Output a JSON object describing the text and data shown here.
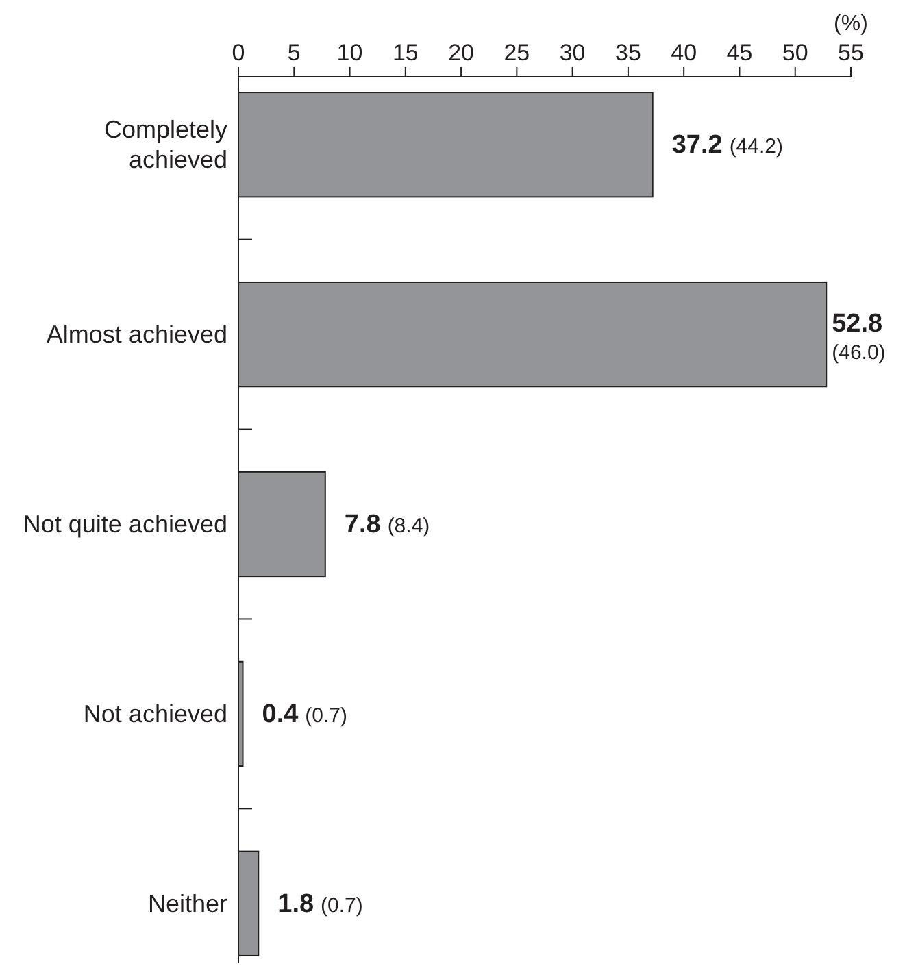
{
  "chart_data": {
    "type": "bar",
    "orientation": "horizontal",
    "xlabel": "(%)",
    "categories": [
      "Completely\nachieved",
      "Almost achieved",
      "Not quite achieved",
      "Not achieved",
      "Neither"
    ],
    "values": [
      37.2,
      52.8,
      7.8,
      0.4,
      1.8
    ],
    "color": "#939598",
    "value_labels": [
      "37.2 (44.2)",
      "52.8 (46.0)",
      "7.8 (8.4)",
      "0.4 (0.7)",
      "1.8 (0.7)"
    ],
    "xlim": [
      0,
      55
    ],
    "xticks": [
      0,
      5,
      10,
      15,
      20,
      25,
      30,
      35,
      40,
      45,
      50,
      55
    ],
    "grid": false
  }
}
